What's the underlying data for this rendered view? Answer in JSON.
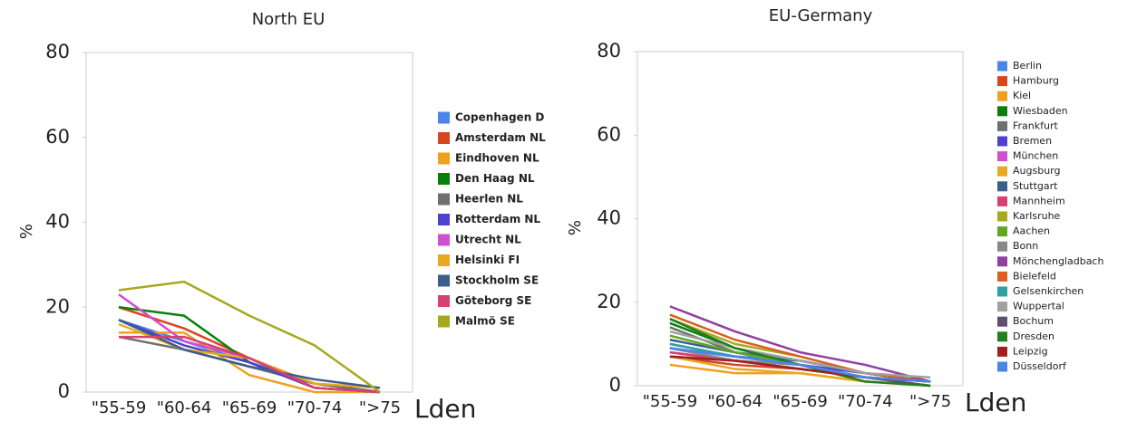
{
  "chart_data": [
    {
      "type": "line",
      "title": "North EU",
      "y_label": "%",
      "x_label": "Lden",
      "categories": [
        "\"55-59",
        "\"60-64",
        "\"65-69",
        "\"70-74",
        "\">75"
      ],
      "ylim": [
        0,
        80
      ],
      "yticks": [
        0,
        20,
        40,
        60,
        80
      ],
      "grid": false,
      "series": [
        {
          "name": "Copenhagen D",
          "color": "#4a86e8",
          "values": [
            17,
            12,
            7,
            2,
            0
          ]
        },
        {
          "name": "Amsterdam NL",
          "color": "#d9451f",
          "values": [
            20,
            15,
            8,
            2,
            0
          ]
        },
        {
          "name": "Eindhoven NL",
          "color": "#f0a020",
          "values": [
            14,
            14,
            4,
            0,
            0
          ]
        },
        {
          "name": "Den Haag NL",
          "color": "#0a800a",
          "values": [
            20,
            18,
            7,
            1,
            0
          ]
        },
        {
          "name": "Heerlen NL",
          "color": "#6f6f6f",
          "values": [
            13,
            10,
            6,
            2,
            0
          ]
        },
        {
          "name": "Rotterdam NL",
          "color": "#5040d0",
          "values": [
            17,
            11,
            7,
            1,
            0
          ]
        },
        {
          "name": "Utrecht NL",
          "color": "#d050d0",
          "values": [
            23,
            12,
            8,
            1,
            0
          ]
        },
        {
          "name": "Helsinki FI",
          "color": "#e8a820",
          "values": [
            16,
            10,
            8,
            2,
            1
          ]
        },
        {
          "name": "Stockholm SE",
          "color": "#3a5f8a",
          "values": [
            17,
            10,
            6,
            3,
            1
          ]
        },
        {
          "name": "Göteborg SE",
          "color": "#d84070",
          "values": [
            13,
            13,
            8,
            1,
            0
          ]
        },
        {
          "name": "Malmö SE",
          "color": "#a8a820",
          "values": [
            24,
            26,
            18,
            11,
            0
          ]
        }
      ]
    },
    {
      "type": "line",
      "title": "EU-Germany",
      "y_label": "%",
      "x_label": "Lden",
      "categories": [
        "\"55-59",
        "\"60-64",
        "\"65-69",
        "\"70-74",
        "\">75"
      ],
      "ylim": [
        0,
        80
      ],
      "yticks": [
        0,
        20,
        40,
        60,
        80
      ],
      "grid": false,
      "series": [
        {
          "name": "Berlin",
          "color": "#4a86e8",
          "values": [
            10,
            7,
            6,
            3,
            1
          ]
        },
        {
          "name": "Hamburg",
          "color": "#d9451f",
          "values": [
            7,
            5,
            4,
            2,
            0
          ]
        },
        {
          "name": "Kiel",
          "color": "#f0a020",
          "values": [
            5,
            3,
            3,
            1,
            0
          ]
        },
        {
          "name": "Wiesbaden",
          "color": "#0a800a",
          "values": [
            15,
            9,
            6,
            3,
            1
          ]
        },
        {
          "name": "Frankfurt",
          "color": "#6f6f6f",
          "values": [
            14,
            8,
            5,
            2,
            1
          ]
        },
        {
          "name": "Bremen",
          "color": "#5040d0",
          "values": [
            9,
            7,
            5,
            3,
            1
          ]
        },
        {
          "name": "München",
          "color": "#d050d0",
          "values": [
            8,
            6,
            4,
            2,
            0
          ]
        },
        {
          "name": "Augsburg",
          "color": "#e8a820",
          "values": [
            7,
            4,
            3,
            1,
            0
          ]
        },
        {
          "name": "Stuttgart",
          "color": "#3a5f8a",
          "values": [
            11,
            8,
            6,
            3,
            1
          ]
        },
        {
          "name": "Mannheim",
          "color": "#d84070",
          "values": [
            8,
            6,
            5,
            2,
            1
          ]
        },
        {
          "name": "Karlsruhe",
          "color": "#a8a820",
          "values": [
            16,
            10,
            7,
            3,
            1
          ]
        },
        {
          "name": "Aachen",
          "color": "#60a820",
          "values": [
            12,
            8,
            5,
            2,
            1
          ]
        },
        {
          "name": "Bonn",
          "color": "#888888",
          "values": [
            9,
            6,
            5,
            2,
            1
          ]
        },
        {
          "name": "Mönchengladbach",
          "color": "#9040a0",
          "values": [
            19,
            13,
            8,
            5,
            1
          ]
        },
        {
          "name": "Bielefeld",
          "color": "#d86020",
          "values": [
            17,
            11,
            7,
            3,
            1
          ]
        },
        {
          "name": "Gelsenkirchen",
          "color": "#30a0a0",
          "values": [
            10,
            7,
            5,
            2,
            1
          ]
        },
        {
          "name": "Wuppertal",
          "color": "#a0a0a0",
          "values": [
            13,
            9,
            6,
            3,
            2
          ]
        },
        {
          "name": "Bochum",
          "color": "#605070",
          "values": [
            7,
            6,
            4,
            2,
            0
          ]
        },
        {
          "name": "Dresden",
          "color": "#208020",
          "values": [
            16,
            9,
            5,
            1,
            0
          ]
        },
        {
          "name": "Leipzig",
          "color": "#a02020",
          "values": [
            7,
            6,
            4,
            2,
            1
          ]
        },
        {
          "name": "Düsseldorf",
          "color": "#4a86e8",
          "values": [
            9,
            7,
            5,
            2,
            1
          ]
        }
      ]
    }
  ]
}
